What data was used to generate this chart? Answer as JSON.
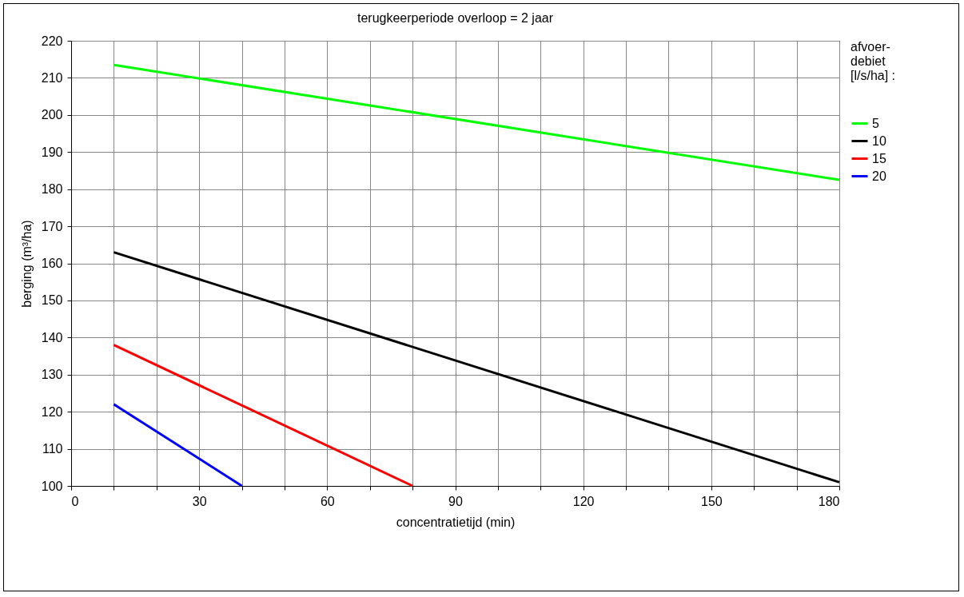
{
  "chart_data": {
    "type": "line",
    "title": "terugkeerperiode overloop =  2 jaar",
    "xlabel": "concentratietijd (min)",
    "ylabel": "berging (m³/ha)",
    "legend_title": "afvoer-debiet [l/s/ha] :",
    "series": [
      {
        "name": "5",
        "color": "#00ff00",
        "x": [
          10,
          180
        ],
        "values": [
          213.5,
          182.5
        ]
      },
      {
        "name": "10",
        "color": "#000000",
        "x": [
          10,
          180
        ],
        "values": [
          163,
          101
        ]
      },
      {
        "name": "15",
        "color": "#ff0000",
        "x": [
          10,
          80
        ],
        "values": [
          138,
          100
        ]
      },
      {
        "name": "20",
        "color": "#0000ff",
        "x": [
          10,
          40
        ],
        "values": [
          122,
          100
        ]
      }
    ],
    "xlim": [
      0,
      180
    ],
    "ylim": [
      100,
      220
    ],
    "xticks": [
      0,
      {
        "value": 10,
        "label": null
      },
      {
        "value": 20,
        "label": null
      },
      30,
      {
        "value": 40,
        "label": null
      },
      {
        "value": 50,
        "label": null
      },
      60,
      {
        "value": 70,
        "label": null
      },
      {
        "value": 80,
        "label": null
      },
      90,
      {
        "value": 100,
        "label": null
      },
      {
        "value": 110,
        "label": null
      },
      120,
      {
        "value": 130,
        "label": null
      },
      {
        "value": 140,
        "label": null
      },
      150,
      {
        "value": 160,
        "label": null
      },
      {
        "value": 170,
        "label": null
      },
      180
    ],
    "yticks": [
      100,
      110,
      120,
      130,
      140,
      150,
      160,
      170,
      180,
      190,
      200,
      210,
      220
    ],
    "grid": true,
    "legend": "right",
    "marker": "none",
    "line_style": "solid"
  }
}
